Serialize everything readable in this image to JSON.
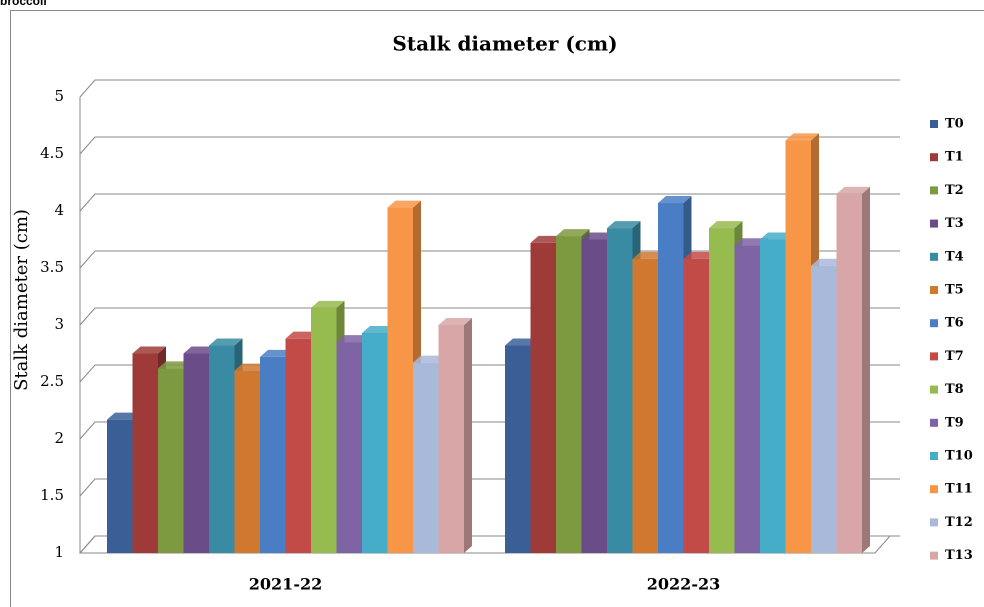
{
  "caption": "broccoli",
  "chart_data": {
    "type": "bar3d",
    "title": "Stalk diameter (cm)",
    "y_label": "Stalk diameter (cm)",
    "categories": [
      "2021-22",
      "2022-23"
    ],
    "series": [
      {
        "name": "T0",
        "color": "#3a5f96",
        "values": [
          2.17,
          2.82
        ]
      },
      {
        "name": "T1",
        "color": "#9e3b39",
        "values": [
          2.75,
          3.72
        ]
      },
      {
        "name": "T2",
        "color": "#7d9a40",
        "values": [
          2.62,
          3.78
        ]
      },
      {
        "name": "T3",
        "color": "#6a4c88",
        "values": [
          2.75,
          3.75
        ]
      },
      {
        "name": "T4",
        "color": "#388ba3",
        "values": [
          2.82,
          3.85
        ]
      },
      {
        "name": "T5",
        "color": "#d07830",
        "values": [
          2.6,
          3.58
        ]
      },
      {
        "name": "T6",
        "color": "#4a7ec4",
        "values": [
          2.72,
          4.07
        ]
      },
      {
        "name": "T7",
        "color": "#c24a47",
        "values": [
          2.88,
          3.58
        ]
      },
      {
        "name": "T8",
        "color": "#96bb4f",
        "values": [
          3.15,
          3.85
        ]
      },
      {
        "name": "T9",
        "color": "#7e63a4",
        "values": [
          2.85,
          3.7
        ]
      },
      {
        "name": "T10",
        "color": "#45adc8",
        "values": [
          2.93,
          3.75
        ]
      },
      {
        "name": "T11",
        "color": "#f79646",
        "values": [
          4.03,
          4.62
        ]
      },
      {
        "name": "T12",
        "color": "#a9b9da",
        "values": [
          2.67,
          3.52
        ]
      },
      {
        "name": "T13",
        "color": "#d8a6a6",
        "values": [
          3.0,
          4.15
        ]
      }
    ],
    "ylim": [
      1,
      5
    ],
    "yticks": [
      1,
      1.5,
      2,
      2.5,
      3,
      3.5,
      4,
      4.5,
      5
    ],
    "grid": true,
    "legend": "right"
  }
}
